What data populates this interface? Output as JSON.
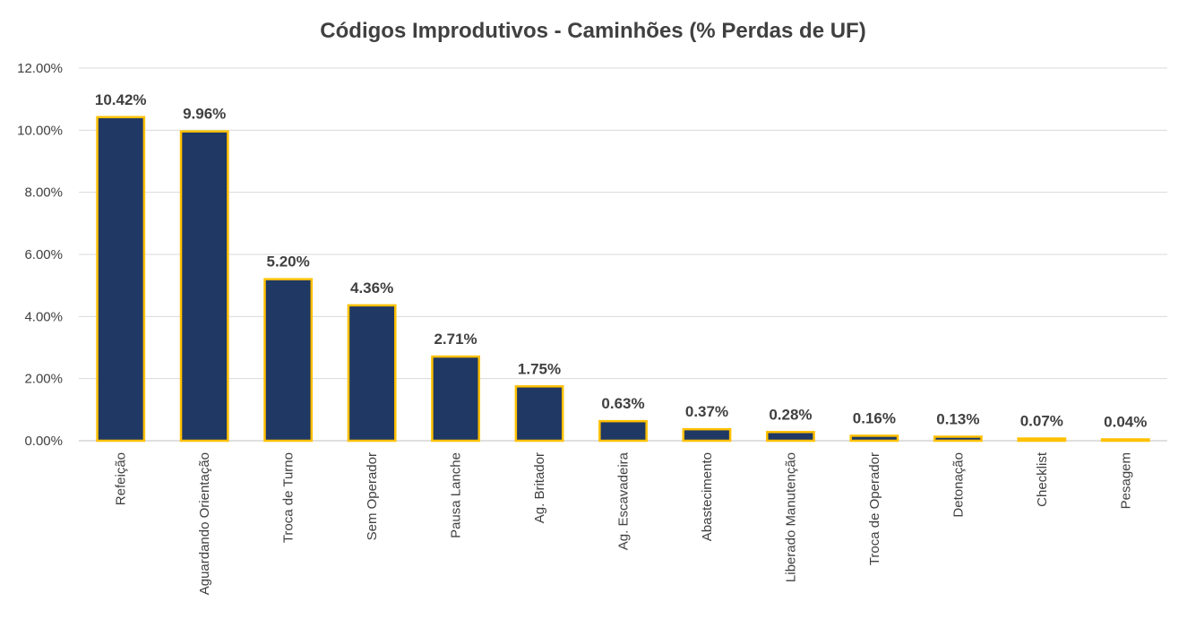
{
  "chart_data": {
    "type": "bar",
    "title": "Códigos Improdutivos - Caminhões (% Perdas de UF)",
    "xlabel": "",
    "ylabel": "",
    "categories": [
      "Refeição",
      "Aguardando Orientação",
      "Troca de Turno",
      "Sem Operador",
      "Pausa Lanche",
      "Ag. Britador",
      "Ag. Escavadeira",
      "Abastecimento",
      "Liberado Manutenção",
      "Troca de Operador",
      "Detonação",
      "Checklist",
      "Pesagem"
    ],
    "values": [
      10.42,
      9.96,
      5.2,
      4.36,
      2.71,
      1.75,
      0.63,
      0.37,
      0.28,
      0.16,
      0.13,
      0.07,
      0.04
    ],
    "data_labels": [
      "10.42%",
      "9.96%",
      "5.20%",
      "4.36%",
      "2.71%",
      "1.75%",
      "0.63%",
      "0.37%",
      "0.28%",
      "0.16%",
      "0.13%",
      "0.07%",
      "0.04%"
    ],
    "ylim": [
      0,
      12
    ],
    "yticks": [
      0,
      2,
      4,
      6,
      8,
      10,
      12
    ],
    "ytick_labels": [
      "0.00%",
      "2.00%",
      "4.00%",
      "6.00%",
      "8.00%",
      "10.00%",
      "12.00%"
    ],
    "grid": true,
    "legend": "none",
    "colors": {
      "bar_fill": "#1f3864",
      "bar_border": "#ffc000",
      "grid": "#d9d9d9",
      "axis": "#bfbfbf",
      "text": "#404040"
    }
  }
}
